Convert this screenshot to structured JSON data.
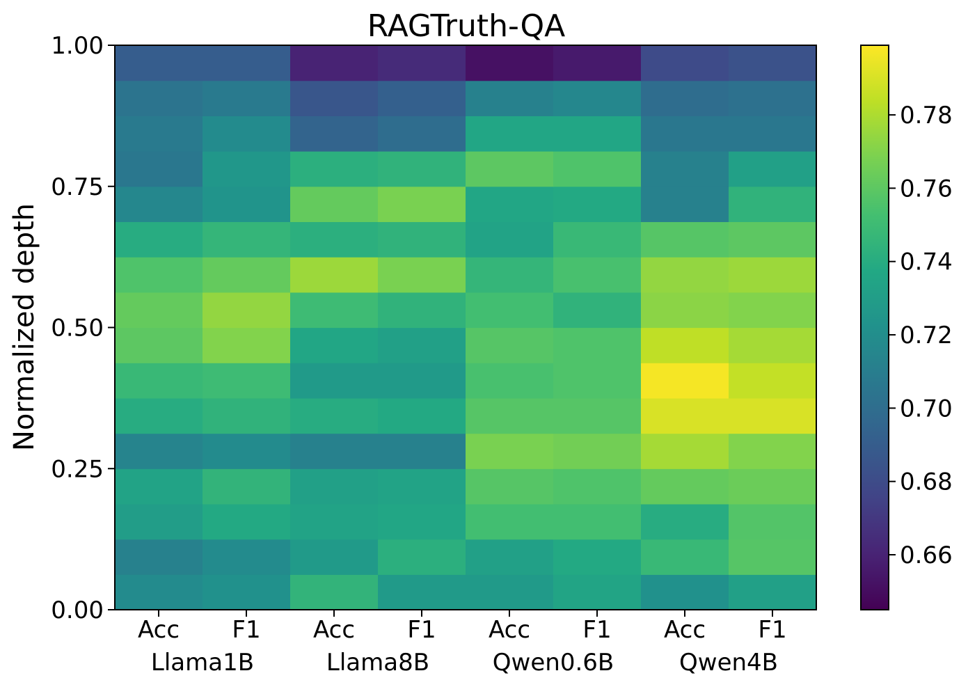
{
  "chart_data": {
    "type": "heatmap",
    "title": "RAGTruth-QA",
    "ylabel": "Normalized depth",
    "xlabel": "",
    "ylim": [
      0.0,
      1.0
    ],
    "yticks": [
      "0.00",
      "0.25",
      "0.50",
      "0.75",
      "1.00"
    ],
    "columns": [
      {
        "metric": "Acc",
        "model": "Llama1B"
      },
      {
        "metric": "F1",
        "model": "Llama1B"
      },
      {
        "metric": "Acc",
        "model": "Llama8B"
      },
      {
        "metric": "F1",
        "model": "Llama8B"
      },
      {
        "metric": "Acc",
        "model": "Qwen0.6B"
      },
      {
        "metric": "F1",
        "model": "Qwen0.6B"
      },
      {
        "metric": "Acc",
        "model": "Qwen4B"
      },
      {
        "metric": "F1",
        "model": "Qwen4B"
      }
    ],
    "models": [
      "Llama1B",
      "Llama8B",
      "Qwen0.6B",
      "Qwen4B"
    ],
    "depth_bins": [
      {
        "y0": 0.0,
        "y1": 0.0625
      },
      {
        "y0": 0.0625,
        "y1": 0.125
      },
      {
        "y0": 0.125,
        "y1": 0.1875
      },
      {
        "y0": 0.1875,
        "y1": 0.25
      },
      {
        "y0": 0.25,
        "y1": 0.3125
      },
      {
        "y0": 0.3125,
        "y1": 0.375
      },
      {
        "y0": 0.375,
        "y1": 0.4375
      },
      {
        "y0": 0.4375,
        "y1": 0.5
      },
      {
        "y0": 0.5,
        "y1": 0.5625
      },
      {
        "y0": 0.5625,
        "y1": 0.625
      },
      {
        "y0": 0.625,
        "y1": 0.6875
      },
      {
        "y0": 0.6875,
        "y1": 0.75
      },
      {
        "y0": 0.75,
        "y1": 0.8125
      },
      {
        "y0": 0.8125,
        "y1": 0.875
      },
      {
        "y0": 0.875,
        "y1": 0.9375
      },
      {
        "y0": 0.9375,
        "y1": 1.0
      }
    ],
    "values": [
      [
        0.718,
        0.722,
        0.745,
        0.728,
        0.728,
        0.735,
        0.722,
        0.732
      ],
      [
        0.712,
        0.718,
        0.728,
        0.742,
        0.732,
        0.738,
        0.748,
        0.758
      ],
      [
        0.73,
        0.738,
        0.734,
        0.736,
        0.752,
        0.752,
        0.74,
        0.757
      ],
      [
        0.734,
        0.745,
        0.732,
        0.734,
        0.758,
        0.756,
        0.762,
        0.764
      ],
      [
        0.714,
        0.718,
        0.712,
        0.712,
        0.768,
        0.766,
        0.778,
        0.77
      ],
      [
        0.74,
        0.744,
        0.74,
        0.738,
        0.758,
        0.758,
        0.79,
        0.79
      ],
      [
        0.748,
        0.75,
        0.728,
        0.728,
        0.754,
        0.756,
        0.797,
        0.785
      ],
      [
        0.76,
        0.77,
        0.736,
        0.732,
        0.758,
        0.756,
        0.784,
        0.778
      ],
      [
        0.762,
        0.774,
        0.75,
        0.744,
        0.752,
        0.744,
        0.772,
        0.77
      ],
      [
        0.756,
        0.762,
        0.776,
        0.768,
        0.746,
        0.754,
        0.774,
        0.776
      ],
      [
        0.74,
        0.746,
        0.742,
        0.744,
        0.734,
        0.748,
        0.758,
        0.76
      ],
      [
        0.716,
        0.724,
        0.762,
        0.768,
        0.736,
        0.738,
        0.712,
        0.744
      ],
      [
        0.706,
        0.726,
        0.742,
        0.744,
        0.76,
        0.756,
        0.712,
        0.732
      ],
      [
        0.708,
        0.718,
        0.694,
        0.7,
        0.736,
        0.736,
        0.706,
        0.706
      ],
      [
        0.704,
        0.708,
        0.686,
        0.692,
        0.712,
        0.716,
        0.7,
        0.702
      ],
      [
        0.69,
        0.69,
        0.66,
        0.664,
        0.652,
        0.656,
        0.68,
        0.684
      ]
    ],
    "colorscale": "viridis",
    "color_range": [
      0.645,
      0.799
    ],
    "colorbar_ticks": [
      "0.66",
      "0.68",
      "0.70",
      "0.72",
      "0.74",
      "0.76",
      "0.78"
    ],
    "grid": false,
    "legend": "colorbar-right"
  }
}
